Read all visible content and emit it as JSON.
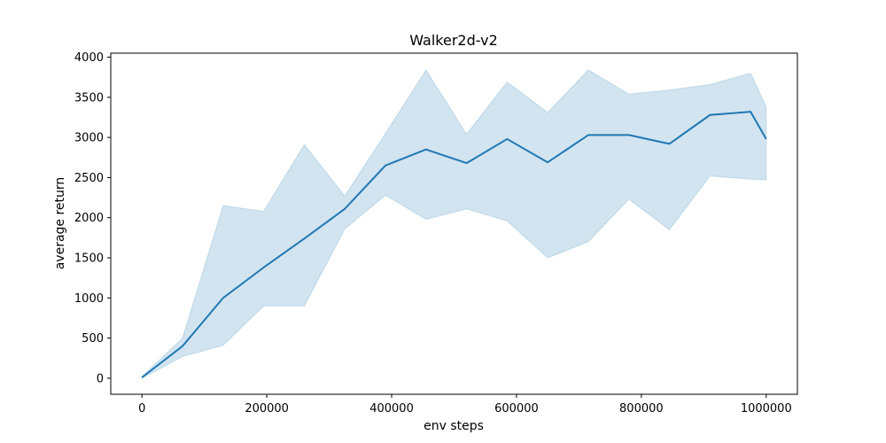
{
  "chart_data": {
    "type": "line",
    "title": "Walker2d-v2",
    "xlabel": "env steps",
    "ylabel": "average return",
    "xlim": [
      -50000,
      1050000
    ],
    "ylim": [
      -200,
      4050
    ],
    "xticks": [
      0,
      200000,
      400000,
      600000,
      800000,
      1000000
    ],
    "xtick_labels": [
      "0",
      "200000",
      "400000",
      "600000",
      "800000",
      "1000000"
    ],
    "yticks": [
      0,
      500,
      1000,
      1500,
      2000,
      2500,
      3000,
      3500,
      4000
    ],
    "ytick_labels": [
      "0",
      "500",
      "1000",
      "1500",
      "2000",
      "2500",
      "3000",
      "3500",
      "4000"
    ],
    "grid": false,
    "colors": {
      "line": "#1f77b4",
      "band": "#1f77b4"
    },
    "series": [
      {
        "x": [
          0,
          65000,
          130000,
          195000,
          260000,
          325000,
          390000,
          455000,
          520000,
          585000,
          650000,
          715000,
          780000,
          845000,
          910000,
          975000,
          1000000
        ],
        "mean": [
          10,
          400,
          1000,
          1380,
          1740,
          2110,
          2650,
          2850,
          2680,
          2980,
          2690,
          3030,
          3030,
          2920,
          3280,
          3320,
          2980
        ],
        "lower": [
          0,
          270,
          410,
          900,
          900,
          1860,
          2280,
          1980,
          2110,
          1960,
          1500,
          1700,
          2230,
          1850,
          2520,
          2480,
          2470
        ],
        "upper": [
          20,
          500,
          2150,
          2080,
          2910,
          2270,
          3050,
          3840,
          3040,
          3690,
          3310,
          3840,
          3540,
          3590,
          3660,
          3800,
          3380
        ]
      }
    ]
  }
}
